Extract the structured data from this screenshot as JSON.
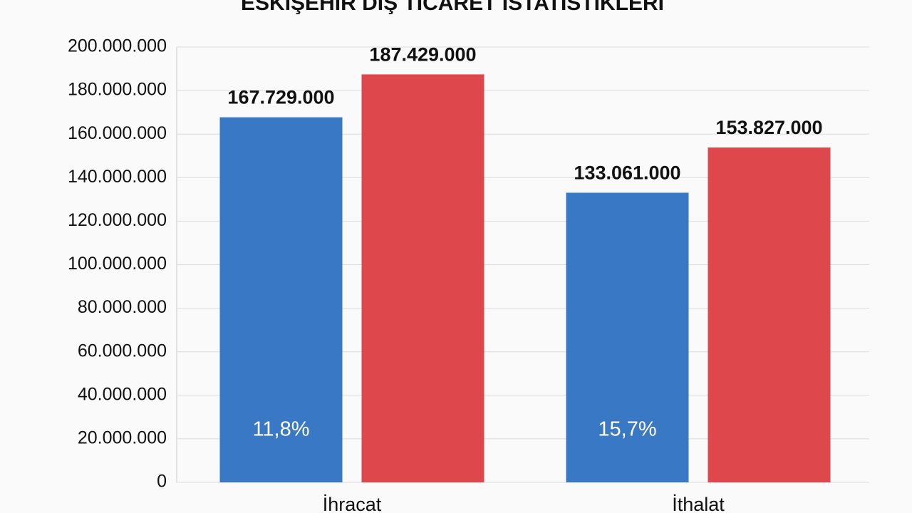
{
  "chart_data": {
    "type": "bar",
    "title": "ESKİŞEHİR DIŞ TİCARET İSTATİSTİKLERİ",
    "categories": [
      "İhracat",
      "İthalat"
    ],
    "series": [
      {
        "color": "#3878c4",
        "values": [
          167729000,
          133061000
        ],
        "value_labels": [
          "167.729.000",
          "133.061.000"
        ]
      },
      {
        "color": "#de474b",
        "values": [
          187429000,
          153827000
        ],
        "value_labels": [
          "187.429.000",
          "153.827.000"
        ]
      }
    ],
    "annotations": [
      "11,8%",
      "15,7%"
    ],
    "ylim": [
      0,
      200000000
    ],
    "yticks": [
      0,
      {
        "value": 20000000,
        "label": "20.000.000"
      },
      {
        "value": 40000000,
        "label": "40.000.000"
      },
      {
        "value": 60000000,
        "label": "60.000.000"
      },
      {
        "value": 80000000,
        "label": "80.000.000"
      },
      {
        "value": 100000000,
        "label": "100.000.000"
      },
      {
        "value": 120000000,
        "label": "120.000.000"
      },
      {
        "value": 140000000,
        "label": "140.000.000"
      },
      {
        "value": 160000000,
        "label": "160.000.000"
      },
      {
        "value": 180000000,
        "label": "180.000.000"
      },
      {
        "value": 200000000,
        "label": "200.000.000"
      }
    ],
    "grid": true
  }
}
